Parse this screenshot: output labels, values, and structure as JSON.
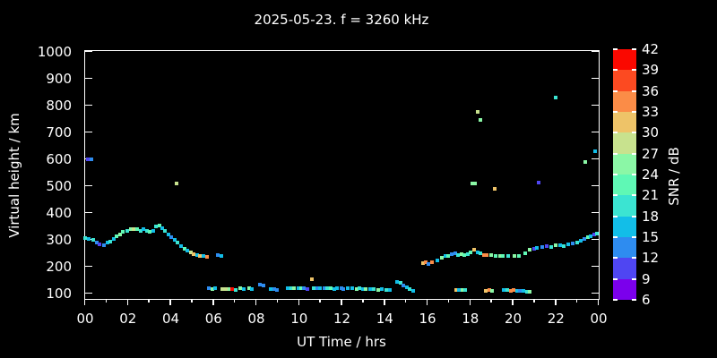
{
  "title": "2025-05-23. f = 3260 kHz",
  "chart_data": {
    "type": "scatter",
    "title": "2025-05-23. f = 3260 kHz",
    "xlabel": "UT Time / hrs",
    "ylabel": "Virtual height / km",
    "xlim": [
      0,
      24
    ],
    "ylim": [
      80,
      1003
    ],
    "grid": false,
    "background": "#000000",
    "text_color": "#ffffff",
    "x_tick_hours": [
      0,
      2,
      4,
      6,
      8,
      10,
      12,
      14,
      16,
      18,
      20,
      22,
      24
    ],
    "x_tick_labels": [
      "00",
      "02",
      "04",
      "06",
      "08",
      "10",
      "12",
      "14",
      "16",
      "18",
      "20",
      "22",
      "00"
    ],
    "y_tick_values": [
      100,
      200,
      300,
      400,
      500,
      600,
      700,
      800,
      900,
      1000
    ],
    "y_tick_labels": [
      "100",
      "200",
      "300",
      "400",
      "500",
      "600",
      "700",
      "800",
      "900",
      "1000"
    ],
    "colorbar": {
      "label": "SNR / dB",
      "tick_labels": [
        "42",
        "39",
        "36",
        "33",
        "30",
        "27",
        "24",
        "21",
        "18",
        "15",
        "12",
        "9",
        "6"
      ],
      "min": 6,
      "max": 42,
      "step": 3,
      "colors_low_to_high": [
        "#7B00EC",
        "#4F46F2",
        "#2E8CF0",
        "#12BEE8",
        "#3BE4D2",
        "#5FF8B5",
        "#8BF7A6",
        "#C8E28E",
        "#EEC368",
        "#FB8C47",
        "#FC4A21",
        "#FA0800"
      ]
    },
    "points_format": [
      "ut_hours",
      "virtual_height_km",
      "snr_db"
    ],
    "points": [
      [
        0.0,
        305,
        19
      ],
      [
        0.2,
        303,
        16
      ],
      [
        0.4,
        300,
        19
      ],
      [
        0.55,
        290,
        13
      ],
      [
        0.7,
        283,
        10
      ],
      [
        0.9,
        280,
        13
      ],
      [
        1.05,
        287,
        16
      ],
      [
        1.2,
        293,
        19
      ],
      [
        1.35,
        303,
        16
      ],
      [
        1.5,
        313,
        22
      ],
      [
        1.65,
        320,
        25
      ],
      [
        1.8,
        327,
        22
      ],
      [
        2.0,
        333,
        19
      ],
      [
        2.15,
        337,
        25
      ],
      [
        2.3,
        340,
        28
      ],
      [
        2.45,
        337,
        22
      ],
      [
        2.6,
        333,
        19
      ],
      [
        2.75,
        337,
        16
      ],
      [
        2.9,
        333,
        19
      ],
      [
        3.05,
        330,
        22
      ],
      [
        3.2,
        331,
        16
      ],
      [
        3.35,
        348,
        19
      ],
      [
        3.5,
        352,
        22
      ],
      [
        3.62,
        342,
        16
      ],
      [
        3.75,
        331,
        19
      ],
      [
        3.9,
        319,
        16
      ],
      [
        4.05,
        308,
        13
      ],
      [
        4.2,
        298,
        16
      ],
      [
        4.35,
        288,
        19
      ],
      [
        4.5,
        276,
        16
      ],
      [
        4.65,
        266,
        22
      ],
      [
        4.8,
        258,
        16
      ],
      [
        4.95,
        251,
        28
      ],
      [
        5.1,
        246,
        31
      ],
      [
        5.25,
        243,
        16
      ],
      [
        5.4,
        240,
        31
      ],
      [
        5.55,
        238,
        16
      ],
      [
        5.7,
        236,
        34
      ],
      [
        6.2,
        243,
        13
      ],
      [
        6.4,
        240,
        16
      ],
      [
        5.8,
        118,
        13
      ],
      [
        5.95,
        116,
        25
      ],
      [
        6.1,
        117,
        16
      ],
      [
        6.45,
        116,
        28
      ],
      [
        6.6,
        115,
        28
      ],
      [
        6.75,
        116,
        25
      ],
      [
        6.9,
        115,
        40
      ],
      [
        7.05,
        113,
        19
      ],
      [
        7.25,
        117,
        25
      ],
      [
        7.45,
        115,
        16
      ],
      [
        7.7,
        119,
        25
      ],
      [
        7.8,
        115,
        16
      ],
      [
        8.2,
        133,
        13
      ],
      [
        8.35,
        130,
        13
      ],
      [
        8.7,
        116,
        16
      ],
      [
        8.85,
        114,
        13
      ],
      [
        9.0,
        112,
        13
      ],
      [
        9.5,
        119,
        16
      ],
      [
        9.65,
        120,
        19
      ],
      [
        9.8,
        118,
        25
      ],
      [
        10.0,
        119,
        16
      ],
      [
        10.1,
        117,
        22
      ],
      [
        10.25,
        118,
        13
      ],
      [
        10.4,
        116,
        10
      ],
      [
        10.6,
        153,
        31
      ],
      [
        10.7,
        118,
        19
      ],
      [
        10.85,
        117,
        13
      ],
      [
        11.0,
        118,
        16
      ],
      [
        11.2,
        117,
        13
      ],
      [
        11.35,
        118,
        19
      ],
      [
        11.5,
        117,
        22
      ],
      [
        11.65,
        116,
        16
      ],
      [
        11.8,
        117,
        16
      ],
      [
        12.0,
        118,
        13
      ],
      [
        12.1,
        116,
        13
      ],
      [
        12.3,
        117,
        16
      ],
      [
        12.5,
        118,
        16
      ],
      [
        12.7,
        116,
        25
      ],
      [
        12.85,
        117,
        19
      ],
      [
        13.0,
        115,
        16
      ],
      [
        13.15,
        116,
        25
      ],
      [
        13.35,
        114,
        16
      ],
      [
        13.5,
        115,
        19
      ],
      [
        13.7,
        113,
        25
      ],
      [
        13.9,
        114,
        16
      ],
      [
        14.1,
        112,
        19
      ],
      [
        14.25,
        113,
        16
      ],
      [
        14.6,
        143,
        16
      ],
      [
        14.75,
        138,
        19
      ],
      [
        14.9,
        130,
        13
      ],
      [
        15.05,
        122,
        16
      ],
      [
        15.2,
        115,
        19
      ],
      [
        15.35,
        110,
        16
      ],
      [
        17.35,
        112,
        31
      ],
      [
        17.5,
        113,
        16
      ],
      [
        17.65,
        112,
        25
      ],
      [
        17.8,
        113,
        19
      ],
      [
        18.75,
        110,
        31
      ],
      [
        18.9,
        111,
        34
      ],
      [
        19.05,
        110,
        25
      ],
      [
        19.6,
        112,
        16
      ],
      [
        19.75,
        113,
        19
      ],
      [
        19.9,
        110,
        34
      ],
      [
        20.05,
        111,
        34
      ],
      [
        20.2,
        110,
        16
      ],
      [
        20.35,
        108,
        13
      ],
      [
        20.5,
        107,
        16
      ],
      [
        20.65,
        106,
        19
      ],
      [
        20.8,
        106,
        25
      ],
      [
        15.8,
        211,
        31
      ],
      [
        15.95,
        214,
        34
      ],
      [
        16.05,
        210,
        13
      ],
      [
        16.25,
        216,
        34
      ],
      [
        16.5,
        221,
        16
      ],
      [
        16.7,
        233,
        25
      ],
      [
        16.85,
        237,
        16
      ],
      [
        17.0,
        240,
        22
      ],
      [
        17.15,
        246,
        13
      ],
      [
        17.3,
        247,
        13
      ],
      [
        17.45,
        243,
        19
      ],
      [
        17.6,
        244,
        25
      ],
      [
        17.75,
        243,
        22
      ],
      [
        17.9,
        245,
        19
      ],
      [
        18.05,
        253,
        22
      ],
      [
        18.2,
        262,
        31
      ],
      [
        18.35,
        253,
        16
      ],
      [
        18.5,
        247,
        19
      ],
      [
        18.65,
        243,
        34
      ],
      [
        18.8,
        241,
        34
      ],
      [
        19.0,
        242,
        25
      ],
      [
        19.2,
        240,
        22
      ],
      [
        19.4,
        239,
        25
      ],
      [
        19.55,
        240,
        22
      ],
      [
        19.8,
        238,
        19
      ],
      [
        20.1,
        237,
        25
      ],
      [
        20.3,
        239,
        22
      ],
      [
        20.6,
        250,
        22
      ],
      [
        20.8,
        263,
        25
      ],
      [
        21.0,
        266,
        10
      ],
      [
        21.15,
        268,
        16
      ],
      [
        21.4,
        272,
        13
      ],
      [
        21.6,
        276,
        10
      ],
      [
        21.8,
        272,
        19
      ],
      [
        22.0,
        280,
        25
      ],
      [
        22.2,
        278,
        16
      ],
      [
        22.4,
        276,
        19
      ],
      [
        22.6,
        281,
        16
      ],
      [
        22.8,
        285,
        13
      ],
      [
        23.0,
        290,
        19
      ],
      [
        23.2,
        296,
        16
      ],
      [
        23.35,
        301,
        13
      ],
      [
        23.5,
        307,
        22
      ],
      [
        23.65,
        313,
        16
      ],
      [
        23.8,
        318,
        10
      ],
      [
        23.95,
        322,
        19
      ],
      [
        0.15,
        600,
        10
      ],
      [
        0.3,
        598,
        13
      ],
      [
        4.3,
        510,
        28
      ],
      [
        18.1,
        510,
        25
      ],
      [
        18.25,
        510,
        25
      ],
      [
        18.35,
        775,
        28
      ],
      [
        18.5,
        745,
        25
      ],
      [
        19.15,
        490,
        31
      ],
      [
        21.2,
        512,
        10
      ],
      [
        22.0,
        830,
        19
      ],
      [
        23.4,
        590,
        25
      ],
      [
        23.85,
        627,
        16
      ]
    ]
  }
}
